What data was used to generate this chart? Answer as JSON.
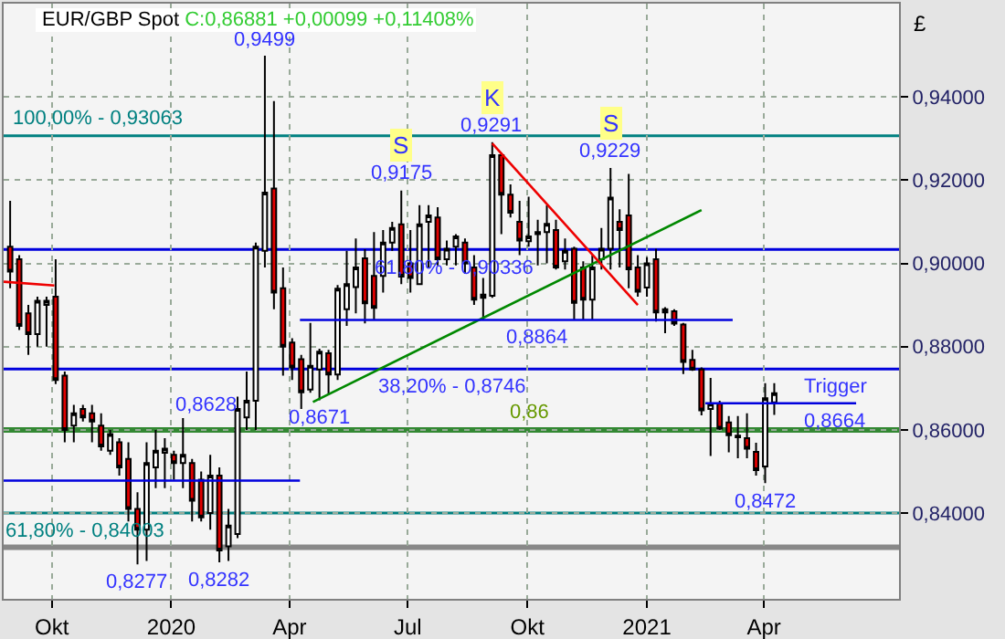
{
  "chart_data": {
    "type": "candlestick",
    "title": "EUR/GBP Spot",
    "subtitle": "C:0,86881 +0,00099 +0,11408%",
    "ylabel": "£",
    "x": [
      "2019-08-30",
      "2019-09-06",
      "2019-09-13",
      "2019-09-20",
      "2019-09-27",
      "2019-10-04",
      "2019-10-11",
      "2019-10-18",
      "2019-10-25",
      "2019-11-01",
      "2019-11-08",
      "2019-11-15",
      "2019-11-22",
      "2019-11-29",
      "2019-12-06",
      "2019-12-13",
      "2019-12-20",
      "2019-12-27",
      "2020-01-03",
      "2020-01-10",
      "2020-01-17",
      "2020-01-24",
      "2020-01-31",
      "2020-02-07",
      "2020-02-14",
      "2020-02-21",
      "2020-02-28",
      "2020-03-06",
      "2020-03-13",
      "2020-03-20",
      "2020-03-27",
      "2020-04-03",
      "2020-04-10",
      "2020-04-17",
      "2020-04-24",
      "2020-05-01",
      "2020-05-08",
      "2020-05-15",
      "2020-05-22",
      "2020-05-29",
      "2020-06-05",
      "2020-06-12",
      "2020-06-19",
      "2020-06-26",
      "2020-07-03",
      "2020-07-10",
      "2020-07-17",
      "2020-07-24",
      "2020-07-31",
      "2020-08-07",
      "2020-08-14",
      "2020-08-21",
      "2020-08-28",
      "2020-09-04",
      "2020-09-11",
      "2020-09-18",
      "2020-09-25",
      "2020-10-02",
      "2020-10-09",
      "2020-10-16",
      "2020-10-23",
      "2020-10-30",
      "2020-11-06",
      "2020-11-13",
      "2020-11-20",
      "2020-11-27",
      "2020-12-04",
      "2020-12-11",
      "2020-12-18",
      "2020-12-25",
      "2021-01-01",
      "2021-01-08",
      "2021-01-15",
      "2021-01-22",
      "2021-01-29",
      "2021-02-05",
      "2021-02-12",
      "2021-02-19",
      "2021-02-26",
      "2021-03-05",
      "2021-03-12",
      "2021-03-19",
      "2021-03-26",
      "2021-04-02",
      "2021-04-09"
    ],
    "ohlc": [
      [
        0.904,
        0.915,
        0.894,
        0.898
      ],
      [
        0.901,
        0.902,
        0.884,
        0.885
      ],
      [
        0.888,
        0.89,
        0.878,
        0.883
      ],
      [
        0.883,
        0.892,
        0.88,
        0.891
      ],
      [
        0.89,
        0.892,
        0.88,
        0.891
      ],
      [
        0.892,
        0.901,
        0.871,
        0.872
      ],
      [
        0.873,
        0.874,
        0.857,
        0.86
      ],
      [
        0.861,
        0.866,
        0.857,
        0.864
      ],
      [
        0.865,
        0.866,
        0.862,
        0.863
      ],
      [
        0.864,
        0.866,
        0.857,
        0.862
      ],
      [
        0.861,
        0.864,
        0.855,
        0.856
      ],
      [
        0.855,
        0.86,
        0.854,
        0.859
      ],
      [
        0.857,
        0.858,
        0.849,
        0.851
      ],
      [
        0.853,
        0.857,
        0.838,
        0.841
      ],
      [
        0.841,
        0.845,
        0.8277,
        0.836
      ],
      [
        0.836,
        0.857,
        0.8285,
        0.852
      ],
      [
        0.851,
        0.86,
        0.846,
        0.855
      ],
      [
        0.8545,
        0.858,
        0.846,
        0.8555
      ],
      [
        0.854,
        0.855,
        0.848,
        0.852
      ],
      [
        0.852,
        0.8628,
        0.846,
        0.854
      ],
      [
        0.852,
        0.853,
        0.838,
        0.843
      ],
      [
        0.848,
        0.85,
        0.838,
        0.839
      ],
      [
        0.84,
        0.854,
        0.836,
        0.849
      ],
      [
        0.849,
        0.851,
        0.8282,
        0.831
      ],
      [
        0.832,
        0.841,
        0.8285,
        0.837
      ],
      [
        0.835,
        0.868,
        0.834,
        0.865
      ],
      [
        0.863,
        0.874,
        0.86,
        0.867
      ],
      [
        0.867,
        0.905,
        0.86,
        0.904
      ],
      [
        0.903,
        0.9499,
        0.899,
        0.917
      ],
      [
        0.918,
        0.939,
        0.889,
        0.893
      ],
      [
        0.894,
        0.899,
        0.873,
        0.88
      ],
      [
        0.881,
        0.882,
        0.872,
        0.875
      ],
      [
        0.877,
        0.878,
        0.865,
        0.869
      ],
      [
        0.8697,
        0.8857,
        0.8689,
        0.8754
      ],
      [
        0.8745,
        0.8795,
        0.8671,
        0.8788
      ],
      [
        0.8784,
        0.8792,
        0.8685,
        0.8733
      ],
      [
        0.8733,
        0.8948,
        0.872,
        0.8939
      ],
      [
        0.889,
        0.903,
        0.885,
        0.895
      ],
      [
        0.8943,
        0.906,
        0.888,
        0.899
      ],
      [
        0.9012,
        0.9034,
        0.8856,
        0.8904
      ],
      [
        0.897,
        0.9075,
        0.8865,
        0.8893
      ],
      [
        0.897,
        0.908,
        0.893,
        0.905
      ],
      [
        0.905,
        0.91,
        0.903,
        0.9085
      ],
      [
        0.9094,
        0.9175,
        0.895,
        0.8968
      ],
      [
        0.9,
        0.908,
        0.893,
        0.8965
      ],
      [
        0.895,
        0.914,
        0.895,
        0.9094
      ],
      [
        0.91,
        0.914,
        0.899,
        0.9115
      ],
      [
        0.911,
        0.9135,
        0.8995,
        0.901
      ],
      [
        0.901,
        0.9055,
        0.8995,
        0.9035
      ],
      [
        0.904,
        0.907,
        0.8995,
        0.9065
      ],
      [
        0.905,
        0.906,
        0.8975,
        0.9
      ],
      [
        0.899,
        0.902,
        0.89,
        0.8913
      ],
      [
        0.8917,
        0.8965,
        0.8864,
        0.8925
      ],
      [
        0.8922,
        0.9291,
        0.8917,
        0.926
      ],
      [
        0.926,
        0.9265,
        0.907,
        0.9165
      ],
      [
        0.9165,
        0.919,
        0.911,
        0.9122
      ],
      [
        0.91,
        0.915,
        0.902,
        0.9055
      ],
      [
        0.9053,
        0.916,
        0.904,
        0.9065
      ],
      [
        0.907,
        0.9105,
        0.8995,
        0.9075
      ],
      [
        0.9075,
        0.914,
        0.9,
        0.9095
      ],
      [
        0.908,
        0.9105,
        0.8985,
        0.899
      ],
      [
        0.9005,
        0.906,
        0.8985,
        0.903
      ],
      [
        0.9035,
        0.904,
        0.8864,
        0.8905
      ],
      [
        0.899,
        0.9005,
        0.8864,
        0.8913
      ],
      [
        0.8913,
        0.902,
        0.8864,
        0.899
      ],
      [
        0.901,
        0.9085,
        0.8985,
        0.9035
      ],
      [
        0.9035,
        0.9229,
        0.8985,
        0.9158
      ],
      [
        0.91,
        0.913,
        0.899,
        0.908
      ],
      [
        0.9115,
        0.9215,
        0.894,
        0.8986
      ],
      [
        0.899,
        0.902,
        0.892,
        0.8932
      ],
      [
        0.8942,
        0.9015,
        0.892,
        0.9
      ],
      [
        0.901,
        0.9035,
        0.886,
        0.8882
      ],
      [
        0.8882,
        0.8895,
        0.8832,
        0.889
      ],
      [
        0.8885,
        0.889,
        0.885,
        0.8855
      ],
      [
        0.8853,
        0.8857,
        0.8734,
        0.8763
      ],
      [
        0.8768,
        0.8792,
        0.8742,
        0.8745
      ],
      [
        0.8745,
        0.875,
        0.8635,
        0.8647
      ],
      [
        0.865,
        0.8725,
        0.8537,
        0.8663
      ],
      [
        0.8663,
        0.867,
        0.86,
        0.8603
      ],
      [
        0.8618,
        0.8633,
        0.8546,
        0.8587
      ],
      [
        0.8586,
        0.8633,
        0.8532,
        0.8582
      ],
      [
        0.858,
        0.864,
        0.8532,
        0.8555
      ],
      [
        0.8547,
        0.8569,
        0.849,
        0.8503
      ],
      [
        0.8512,
        0.8712,
        0.8472,
        0.8676
      ],
      [
        0.8666,
        0.8712,
        0.8636,
        0.8688
      ]
    ],
    "series": [
      {
        "type": "line",
        "color": "#008800",
        "x": [
          "2020-04-19",
          "2021-02-12"
        ],
        "values": [
          0.8667,
          0.9128
        ]
      },
      {
        "type": "line",
        "color": "#ee0000",
        "x": [
          "2020-09-04",
          "2020-12-25"
        ],
        "values": [
          0.9288,
          0.89
        ]
      },
      {
        "type": "line",
        "color": "#0000dd",
        "x": [
          "2020-04-09",
          "2021-03-08"
        ],
        "values": [
          0.8864,
          0.8864
        ]
      },
      {
        "type": "line",
        "color": "#0000dd",
        "x": [
          "2019-08-25",
          "2020-04-09"
        ],
        "values": [
          0.8478,
          0.8478
        ]
      },
      {
        "type": "line",
        "color": "#0000dd",
        "x": [
          "2021-02-15",
          "2021-06-11"
        ],
        "values": [
          0.8664,
          0.8664
        ]
      },
      {
        "type": "line",
        "color": "#ee0000",
        "x": [
          "2019-08-25",
          "2019-10-03"
        ],
        "values": [
          0.8956,
          0.8947
        ]
      }
    ],
    "ref_lines": [
      {
        "axis": "y",
        "value": 0.93063,
        "color": "#008080"
      },
      {
        "axis": "y",
        "value": 0.90336,
        "color": "#0000dd"
      },
      {
        "axis": "y",
        "value": 0.8746,
        "color": "#0000dd"
      },
      {
        "axis": "y",
        "value": 0.86,
        "color": "#338833"
      },
      {
        "axis": "y",
        "value": 0.84003,
        "color": "#008080"
      },
      {
        "axis": "y",
        "value": 0.8318,
        "color": "#888888"
      }
    ],
    "annotations": [
      {
        "text": "100,00% - 0,93063",
        "x": "2019-11-06",
        "y": 0.93063
      },
      {
        "text": "0,9499",
        "x": "2020-03-13",
        "y": 0.9499
      },
      {
        "text": "S",
        "x": "2020-06-26",
        "y": 0.9175
      },
      {
        "text": "0,9175",
        "x": "2020-06-26",
        "y": 0.9175
      },
      {
        "text": "K",
        "x": "2020-09-04",
        "y": 0.9291
      },
      {
        "text": "0,9291",
        "x": "2020-09-04",
        "y": 0.9291
      },
      {
        "text": "S",
        "x": "2020-12-04",
        "y": 0.9229
      },
      {
        "text": "0,9229",
        "x": "2020-12-04",
        "y": 0.9229
      },
      {
        "text": "61,80% - 0,90336",
        "x": "2020-08-05",
        "y": 0.90336
      },
      {
        "text": "0,8864",
        "x": "2020-10-09",
        "y": 0.8864
      },
      {
        "text": "38,20% - 0,8746",
        "x": "2020-08-04",
        "y": 0.8746
      },
      {
        "text": "0,8671",
        "x": "2020-04-24",
        "y": 0.8671
      },
      {
        "text": "0,86",
        "x": "2020-10-02",
        "y": 0.86
      },
      "0,8628",
      {
        "text": "61,80% - 0,84003",
        "x": "2019-10-27",
        "y": 0.84003
      },
      {
        "text": "0,8277",
        "x": "2019-12-06",
        "y": 0.8277
      },
      {
        "text": "0,8282",
        "x": "2020-02-07",
        "y": 0.8282
      },
      {
        "text": "Trigger",
        "x": "2021-05-26",
        "y": 0.8664
      },
      {
        "text": "0,8664",
        "x": "2021-05-26",
        "y": 0.8664
      },
      {
        "text": "0,8472",
        "x": "2021-04-02",
        "y": 0.8472
      }
    ],
    "xlim": [
      "2019-08-25",
      "2021-07-14"
    ],
    "xticks": [
      {
        "value": "2019-10-01",
        "label": "Okt"
      },
      {
        "value": "2020-01-01",
        "label": "2020"
      },
      {
        "value": "2020-04-01",
        "label": "Apr"
      },
      {
        "value": "2020-07-01",
        "label": "Jul"
      },
      {
        "value": "2020-10-01",
        "label": "Okt"
      },
      {
        "value": "2021-01-01",
        "label": "2021"
      },
      {
        "value": "2021-04-01",
        "label": "Apr"
      }
    ],
    "ylim": [
      0.8194,
      0.9624
    ],
    "yticks": [
      {
        "value": 0.84,
        "label": "0,84000"
      },
      {
        "value": 0.86,
        "label": "0,86000"
      },
      {
        "value": 0.88,
        "label": "0,88000"
      },
      {
        "value": 0.9,
        "label": "0,90000"
      },
      {
        "value": 0.92,
        "label": "0,92000"
      },
      {
        "value": 0.94,
        "label": "0,94000"
      }
    ],
    "grid": true
  }
}
